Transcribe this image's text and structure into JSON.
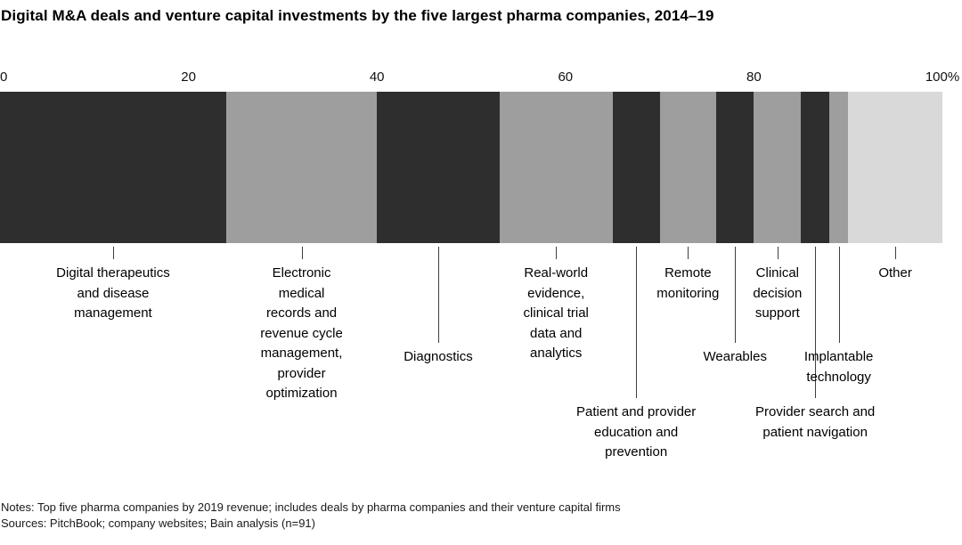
{
  "title": "Digital M&A deals and venture capital investments by the five largest pharma companies, 2014–19",
  "notes": "Notes: Top five pharma companies by 2019 revenue; includes deals by pharma companies and their venture capital firms",
  "sources": "Sources: PitchBook; company websites; Bain analysis (n=91)",
  "chart_data": {
    "type": "bar",
    "variant": "horizontal-stacked-100-percent",
    "title": "Digital M&A deals and venture capital investments by the five largest pharma companies, 2014–19",
    "axis": {
      "min": 0,
      "max": 100,
      "ticks": [
        {
          "label": "0",
          "value": 0
        },
        {
          "label": "20",
          "value": 20
        },
        {
          "label": "40",
          "value": 40
        },
        {
          "label": "60",
          "value": 60
        },
        {
          "label": "80",
          "value": 80
        },
        {
          "label": "100%",
          "value": 100
        }
      ]
    },
    "legend": "none",
    "grid": false,
    "segments": [
      {
        "label": "Digital therapeutics and disease management",
        "lines": [
          "Digital therapeutics",
          "and disease",
          "management"
        ],
        "value": 24,
        "color": "#2e2e2e"
      },
      {
        "label": "Electronic medical records and revenue cycle management, provider optimization",
        "lines": [
          "Electronic",
          "medical",
          "records and",
          "revenue cycle",
          "management,",
          "provider",
          "optimization"
        ],
        "value": 16,
        "color": "#9e9e9e"
      },
      {
        "label": "Diagnostics",
        "lines": [
          "Diagnostics"
        ],
        "value": 13,
        "color": "#2e2e2e"
      },
      {
        "label": "Real-world evidence, clinical trial data and analytics",
        "lines": [
          "Real-world",
          "evidence,",
          "clinical trial",
          "data and",
          "analytics"
        ],
        "value": 12,
        "color": "#9e9e9e"
      },
      {
        "label": "Patient and provider education and prevention",
        "lines": [
          "Patient and provider",
          "education and",
          "prevention"
        ],
        "value": 5,
        "color": "#2e2e2e"
      },
      {
        "label": "Remote monitoring",
        "lines": [
          "Remote",
          "monitoring"
        ],
        "value": 6,
        "color": "#9e9e9e"
      },
      {
        "label": "Wearables",
        "lines": [
          "Wearables"
        ],
        "value": 4,
        "color": "#2e2e2e"
      },
      {
        "label": "Clinical decision support",
        "lines": [
          "Clinical",
          "decision",
          "support"
        ],
        "value": 5,
        "color": "#9e9e9e"
      },
      {
        "label": "Provider search and patient navigation",
        "lines": [
          "Provider search and",
          "patient navigation"
        ],
        "value": 3,
        "color": "#2e2e2e"
      },
      {
        "label": "Implantable technology",
        "lines": [
          "Implantable",
          "technology"
        ],
        "value": 2,
        "color": "#9e9e9e"
      },
      {
        "label": "Other",
        "lines": [
          "Other"
        ],
        "value": 10,
        "color": "#d9d9d9"
      }
    ]
  }
}
